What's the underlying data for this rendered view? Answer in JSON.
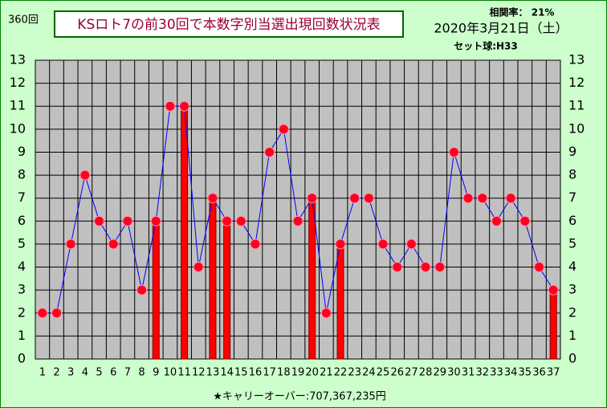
{
  "chart_data": {
    "type": "line-bar",
    "draw_count": "360回",
    "title": "KSロト7の前30回で本数字別当選出現回数状況表",
    "correlation": "相関率： 21%",
    "date": "2020年3月21日（土）",
    "set_ball": "セット球:H33",
    "footer": "★キャリーオーバー:707,367,235円",
    "categories": [
      "1",
      "2",
      "3",
      "4",
      "5",
      "6",
      "7",
      "8",
      "9",
      "10",
      "11",
      "12",
      "13",
      "14",
      "15",
      "16",
      "17",
      "18",
      "19",
      "20",
      "21",
      "22",
      "23",
      "24",
      "25",
      "26",
      "27",
      "28",
      "29",
      "30",
      "31",
      "32",
      "33",
      "34",
      "35",
      "36",
      "37"
    ],
    "series": [
      {
        "type": "line",
        "color": "#0000ff",
        "marker_color": "#ff0022",
        "values": [
          2,
          2,
          5,
          8,
          6,
          5,
          6,
          3,
          6,
          11,
          11,
          4,
          7,
          6,
          6,
          5,
          9,
          10,
          6,
          7,
          2,
          5,
          7,
          7,
          5,
          4,
          5,
          4,
          4,
          9,
          7,
          7,
          6,
          7,
          6,
          4,
          3
        ]
      },
      {
        "type": "bar",
        "color": "#ff0000",
        "values": [
          null,
          null,
          null,
          null,
          null,
          null,
          null,
          null,
          6,
          null,
          11,
          null,
          7,
          6,
          null,
          null,
          null,
          null,
          null,
          7,
          null,
          5,
          null,
          null,
          null,
          null,
          null,
          null,
          null,
          null,
          null,
          null,
          null,
          null,
          null,
          null,
          3
        ]
      }
    ],
    "ylim": [
      0,
      13
    ],
    "yticks": [
      0,
      1,
      2,
      3,
      4,
      5,
      6,
      7,
      8,
      9,
      10,
      11,
      12,
      13
    ],
    "y2lim": [
      0,
      13
    ],
    "y2ticks": [
      0,
      1,
      2,
      3,
      4,
      5,
      6,
      7,
      8,
      9,
      10,
      11,
      12,
      13
    ],
    "grid": true
  }
}
